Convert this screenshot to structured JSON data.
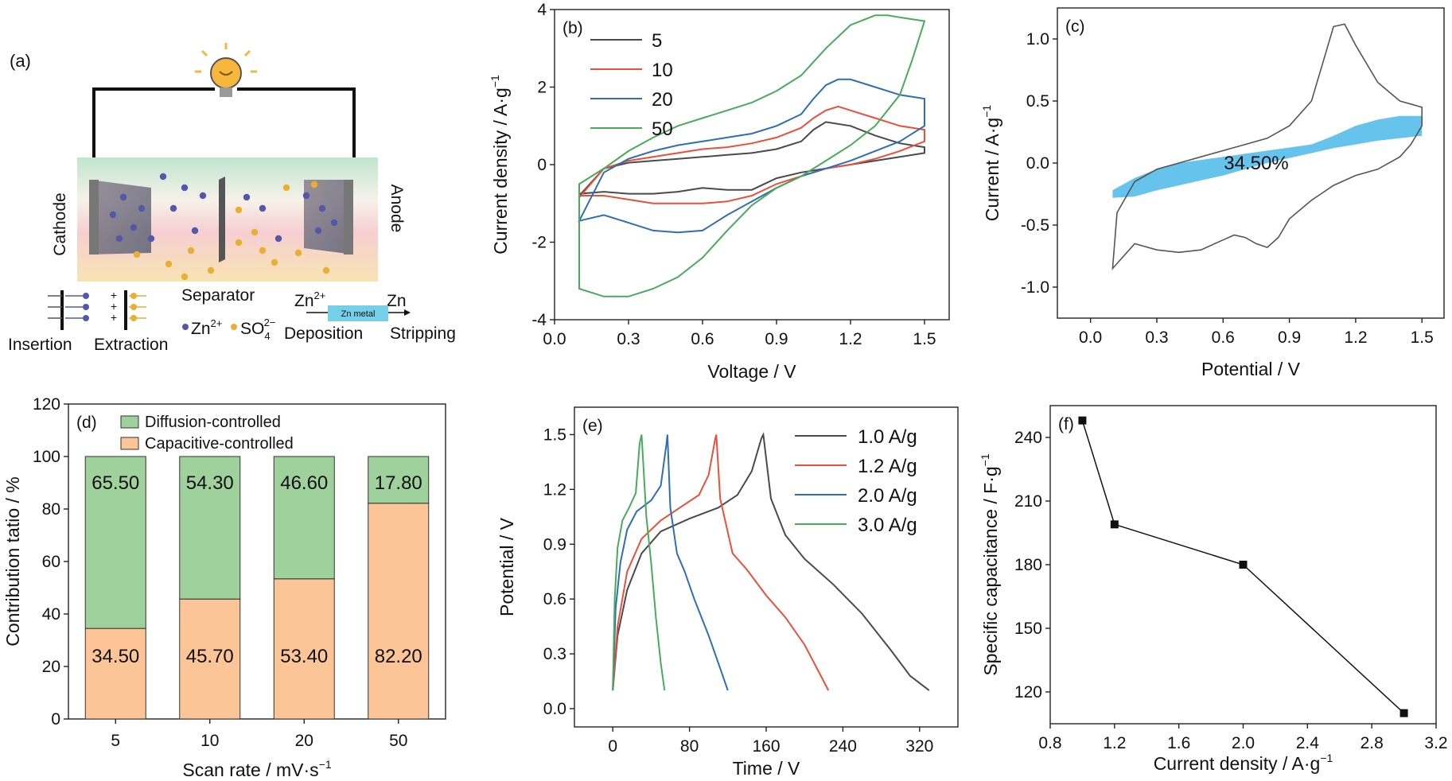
{
  "colors": {
    "black": "#4a4a4a",
    "red": "#e8503c",
    "blue": "#2f6db5",
    "green": "#4aaa5c",
    "diffusion": "#9ed19c",
    "capacitive": "#fbc597",
    "cap_area": "#66c3ec",
    "znmetal": "#74cfe7",
    "zn_ion": "#5358a8",
    "so4_ion": "#e9ae34"
  },
  "panel_a": {
    "label": "(a)",
    "cathode": "Cathode",
    "anode": "Anode",
    "separator": "Separator",
    "zn_ion": "Zn",
    "zn_ion_sup": "2+",
    "so4": "SO",
    "so4_sub": "4",
    "so4_sup": "2−",
    "zn2": "Zn",
    "zn2_sup": "2+",
    "zn_metal": "Zn metal",
    "zn": "Zn",
    "insertion": "Insertion",
    "extraction": "Extraction",
    "deposition": "Deposition",
    "stripping": "Stripping",
    "plus": "+",
    "minus": "−",
    "bulb_icon": "light-bulb-icon"
  },
  "chart_data": [
    {
      "id": "b",
      "type": "line",
      "label": "(b)",
      "xlabel": "Voltage / V",
      "ylabel": "Current density / A·g",
      "ylabel_sup": "−1",
      "xlim": [
        0.0,
        1.6
      ],
      "ylim": [
        -4,
        4
      ],
      "xticks": [
        0.0,
        0.3,
        0.6,
        0.9,
        1.2,
        1.5
      ],
      "yticks": [
        -4,
        -2,
        0,
        2,
        4
      ],
      "xtick_labels": [
        "0.0",
        "0.3",
        "0.6",
        "0.9",
        "1.2",
        "1.5"
      ],
      "ytick_labels": [
        "-4",
        "-2",
        "0",
        "2",
        "4"
      ],
      "legend_position": "top-left",
      "series": [
        {
          "name": "5",
          "color": "black",
          "x": [
            0.1,
            0.2,
            0.3,
            0.4,
            0.5,
            0.6,
            0.7,
            0.8,
            0.9,
            1.0,
            1.05,
            1.1,
            1.2,
            1.3,
            1.4,
            1.5,
            1.5,
            1.4,
            1.3,
            1.2,
            1.1,
            1.0,
            0.9,
            0.8,
            0.7,
            0.6,
            0.5,
            0.4,
            0.3,
            0.2,
            0.1,
            0.1
          ],
          "y": [
            -0.8,
            -0.1,
            0.05,
            0.1,
            0.15,
            0.2,
            0.25,
            0.3,
            0.4,
            0.6,
            0.9,
            1.1,
            1.0,
            0.75,
            0.55,
            0.45,
            0.3,
            0.2,
            0.1,
            0.0,
            -0.1,
            -0.2,
            -0.35,
            -0.65,
            -0.65,
            -0.6,
            -0.7,
            -0.75,
            -0.75,
            -0.7,
            -0.75,
            -0.8
          ]
        },
        {
          "name": "10",
          "color": "red",
          "x": [
            0.1,
            0.2,
            0.3,
            0.4,
            0.5,
            0.6,
            0.7,
            0.8,
            0.9,
            1.0,
            1.05,
            1.1,
            1.15,
            1.2,
            1.3,
            1.4,
            1.5,
            1.5,
            1.4,
            1.3,
            1.2,
            1.1,
            1.0,
            0.9,
            0.8,
            0.7,
            0.6,
            0.5,
            0.4,
            0.3,
            0.2,
            0.1,
            0.1
          ],
          "y": [
            -0.85,
            -0.1,
            0.1,
            0.2,
            0.3,
            0.4,
            0.45,
            0.55,
            0.7,
            0.95,
            1.2,
            1.4,
            1.5,
            1.4,
            1.2,
            1.0,
            0.9,
            0.6,
            0.35,
            0.15,
            0.0,
            -0.1,
            -0.3,
            -0.5,
            -0.8,
            -0.95,
            -1.0,
            -1.0,
            -1.0,
            -0.9,
            -0.8,
            -0.8,
            -0.85
          ]
        },
        {
          "name": "20",
          "color": "blue",
          "x": [
            0.1,
            0.2,
            0.3,
            0.4,
            0.5,
            0.6,
            0.7,
            0.8,
            0.9,
            1.0,
            1.05,
            1.1,
            1.15,
            1.2,
            1.3,
            1.4,
            1.5,
            1.5,
            1.4,
            1.3,
            1.2,
            1.1,
            1.0,
            0.9,
            0.8,
            0.7,
            0.6,
            0.5,
            0.4,
            0.3,
            0.2,
            0.1,
            0.1
          ],
          "y": [
            -1.45,
            -0.2,
            0.15,
            0.35,
            0.5,
            0.6,
            0.7,
            0.8,
            1.0,
            1.3,
            1.7,
            2.05,
            2.2,
            2.2,
            2.0,
            1.8,
            1.7,
            1.0,
            0.6,
            0.35,
            0.1,
            -0.1,
            -0.3,
            -0.6,
            -0.95,
            -1.3,
            -1.7,
            -1.75,
            -1.7,
            -1.5,
            -1.3,
            -1.45,
            -1.45
          ]
        },
        {
          "name": "50",
          "color": "green",
          "x": [
            0.1,
            0.2,
            0.3,
            0.4,
            0.5,
            0.6,
            0.7,
            0.8,
            0.9,
            1.0,
            1.1,
            1.2,
            1.3,
            1.35,
            1.4,
            1.5,
            1.45,
            1.4,
            1.3,
            1.2,
            1.1,
            1.0,
            0.9,
            0.8,
            0.7,
            0.6,
            0.5,
            0.4,
            0.3,
            0.2,
            0.1,
            0.1
          ],
          "y": [
            -0.5,
            -0.1,
            0.35,
            0.7,
            1.0,
            1.2,
            1.4,
            1.6,
            1.9,
            2.3,
            3.0,
            3.6,
            3.85,
            3.85,
            3.8,
            3.7,
            2.7,
            1.8,
            1.0,
            0.5,
            0.1,
            -0.3,
            -0.6,
            -1.05,
            -1.7,
            -2.4,
            -2.9,
            -3.2,
            -3.4,
            -3.4,
            -3.2,
            -0.5
          ]
        }
      ]
    },
    {
      "id": "c",
      "type": "line",
      "label": "(c)",
      "xlabel": "Potential / V",
      "ylabel": "Current / A·g",
      "ylabel_sup": "−1",
      "xlim": [
        -0.15,
        1.6
      ],
      "ylim": [
        -1.25,
        1.25
      ],
      "xticks": [
        0.0,
        0.3,
        0.6,
        0.9,
        1.2,
        1.5
      ],
      "yticks": [
        -1.0,
        -0.5,
        0.0,
        0.5,
        1.0
      ],
      "xtick_labels": [
        "0.0",
        "0.3",
        "0.6",
        "0.9",
        "1.2",
        "1.5"
      ],
      "ytick_labels": [
        "-1.0",
        "-0.5",
        "0.0",
        "0.5",
        "1.0"
      ],
      "annotation": "34.50%",
      "cv_curve": {
        "x": [
          0.1,
          0.12,
          0.2,
          0.3,
          0.4,
          0.5,
          0.6,
          0.7,
          0.8,
          0.9,
          1.0,
          1.05,
          1.1,
          1.15,
          1.2,
          1.3,
          1.4,
          1.5,
          1.5,
          1.45,
          1.4,
          1.3,
          1.2,
          1.1,
          1.0,
          0.9,
          0.85,
          0.8,
          0.75,
          0.7,
          0.65,
          0.6,
          0.5,
          0.4,
          0.3,
          0.2,
          0.15,
          0.1
        ],
        "y": [
          -0.85,
          -0.4,
          -0.15,
          -0.05,
          0.0,
          0.05,
          0.1,
          0.15,
          0.2,
          0.3,
          0.5,
          0.8,
          1.1,
          1.12,
          0.95,
          0.65,
          0.5,
          0.45,
          0.3,
          0.15,
          0.05,
          -0.05,
          -0.1,
          -0.18,
          -0.3,
          -0.45,
          -0.6,
          -0.68,
          -0.65,
          -0.6,
          -0.58,
          -0.62,
          -0.7,
          -0.72,
          -0.7,
          -0.65,
          -0.75,
          -0.85
        ]
      },
      "capacitive_area": {
        "x": [
          0.1,
          0.2,
          0.3,
          0.4,
          0.6,
          0.8,
          1.0,
          1.1,
          1.2,
          1.3,
          1.4,
          1.5,
          1.5,
          1.4,
          1.3,
          1.2,
          1.1,
          1.0,
          0.8,
          0.6,
          0.4,
          0.3,
          0.2,
          0.1
        ],
        "y": [
          -0.22,
          -0.12,
          -0.05,
          0.0,
          0.05,
          0.1,
          0.15,
          0.22,
          0.3,
          0.35,
          0.38,
          0.38,
          0.22,
          0.2,
          0.18,
          0.15,
          0.12,
          0.08,
          0.0,
          -0.1,
          -0.18,
          -0.22,
          -0.27,
          -0.28
        ]
      }
    },
    {
      "id": "d",
      "type": "bar",
      "label": "(d)",
      "xlabel": "Scan rate / mV·s",
      "xlabel_sup": "−1",
      "ylabel": "Contribution tatio / %",
      "categories": [
        "5",
        "10",
        "20",
        "50"
      ],
      "ylim": [
        0,
        120
      ],
      "yticks": [
        0,
        20,
        40,
        60,
        80,
        100,
        120
      ],
      "ytick_labels": [
        "0",
        "20",
        "40",
        "60",
        "80",
        "100",
        "120"
      ],
      "legend_position": "top-left",
      "series": [
        {
          "name": "Capacitive-controlled",
          "color": "capacitive",
          "values": [
            34.5,
            45.7,
            53.4,
            82.2
          ],
          "labels": [
            "34.50",
            "45.70",
            "53.40",
            "82.20"
          ]
        },
        {
          "name": "Diffusion-controlled",
          "color": "diffusion",
          "values": [
            65.5,
            54.3,
            46.6,
            17.8
          ],
          "labels": [
            "65.50",
            "54.30",
            "46.60",
            "17.80"
          ]
        }
      ]
    },
    {
      "id": "e",
      "type": "line",
      "label": "(e)",
      "xlabel": "Time / V",
      "ylabel": "Potential / V",
      "xlim": [
        -40,
        360
      ],
      "ylim": [
        -0.1,
        1.65
      ],
      "xticks": [
        0,
        80,
        160,
        240,
        320
      ],
      "yticks": [
        0.0,
        0.3,
        0.6,
        0.9,
        1.2,
        1.5
      ],
      "xtick_labels": [
        "0",
        "80",
        "160",
        "240",
        "320"
      ],
      "ytick_labels": [
        "0.0",
        "0.3",
        "0.6",
        "0.9",
        "1.2",
        "1.5"
      ],
      "legend_position": "top-right",
      "series": [
        {
          "name": "1.0 A/g",
          "color": "black",
          "x": [
            0,
            5,
            15,
            30,
            50,
            80,
            110,
            130,
            145,
            155,
            157,
            165,
            180,
            200,
            230,
            260,
            290,
            310,
            330
          ],
          "y": [
            0.1,
            0.4,
            0.65,
            0.85,
            0.97,
            1.04,
            1.1,
            1.17,
            1.3,
            1.48,
            1.5,
            1.15,
            0.95,
            0.82,
            0.68,
            0.52,
            0.32,
            0.18,
            0.1
          ]
        },
        {
          "name": "1.2 A/g",
          "color": "red",
          "x": [
            0,
            5,
            15,
            30,
            50,
            70,
            90,
            100,
            107,
            108,
            112,
            125,
            140,
            160,
            180,
            200,
            215,
            225
          ],
          "y": [
            0.1,
            0.45,
            0.75,
            0.93,
            1.03,
            1.1,
            1.17,
            1.28,
            1.48,
            1.5,
            1.15,
            0.85,
            0.76,
            0.62,
            0.5,
            0.35,
            0.2,
            0.1
          ]
        },
        {
          "name": "2.0 A/g",
          "color": "blue",
          "x": [
            0,
            3,
            8,
            15,
            25,
            40,
            50,
            56,
            57,
            60,
            67,
            75,
            85,
            100,
            110,
            120
          ],
          "y": [
            0.1,
            0.55,
            0.8,
            0.98,
            1.08,
            1.14,
            1.22,
            1.45,
            1.5,
            1.1,
            0.85,
            0.75,
            0.6,
            0.4,
            0.25,
            0.1
          ]
        },
        {
          "name": "3.0 A/g",
          "color": "green",
          "x": [
            0,
            2,
            5,
            10,
            17,
            24,
            28,
            30,
            35,
            40,
            45,
            50,
            54
          ],
          "y": [
            0.1,
            0.6,
            0.88,
            1.03,
            1.1,
            1.18,
            1.45,
            1.5,
            1.05,
            0.8,
            0.5,
            0.25,
            0.1
          ]
        }
      ]
    },
    {
      "id": "f",
      "type": "scatter",
      "label": "(f)",
      "xlabel": "Current density / A·g",
      "xlabel_sup": "−1",
      "ylabel": "Specific capacitance / F·g",
      "ylabel_sup": "−1",
      "xlim": [
        0.8,
        3.2
      ],
      "ylim": [
        105,
        255
      ],
      "xticks": [
        0.8,
        1.2,
        1.6,
        2.0,
        2.4,
        2.8,
        3.2
      ],
      "yticks": [
        120,
        150,
        180,
        210,
        240
      ],
      "xtick_labels": [
        "0.8",
        "1.2",
        "1.6",
        "2.0",
        "2.4",
        "2.8",
        "3.2"
      ],
      "ytick_labels": [
        "120",
        "150",
        "180",
        "210",
        "240"
      ],
      "x": [
        1.0,
        1.2,
        2.0,
        3.0
      ],
      "y": [
        248,
        199,
        180,
        110
      ]
    }
  ]
}
